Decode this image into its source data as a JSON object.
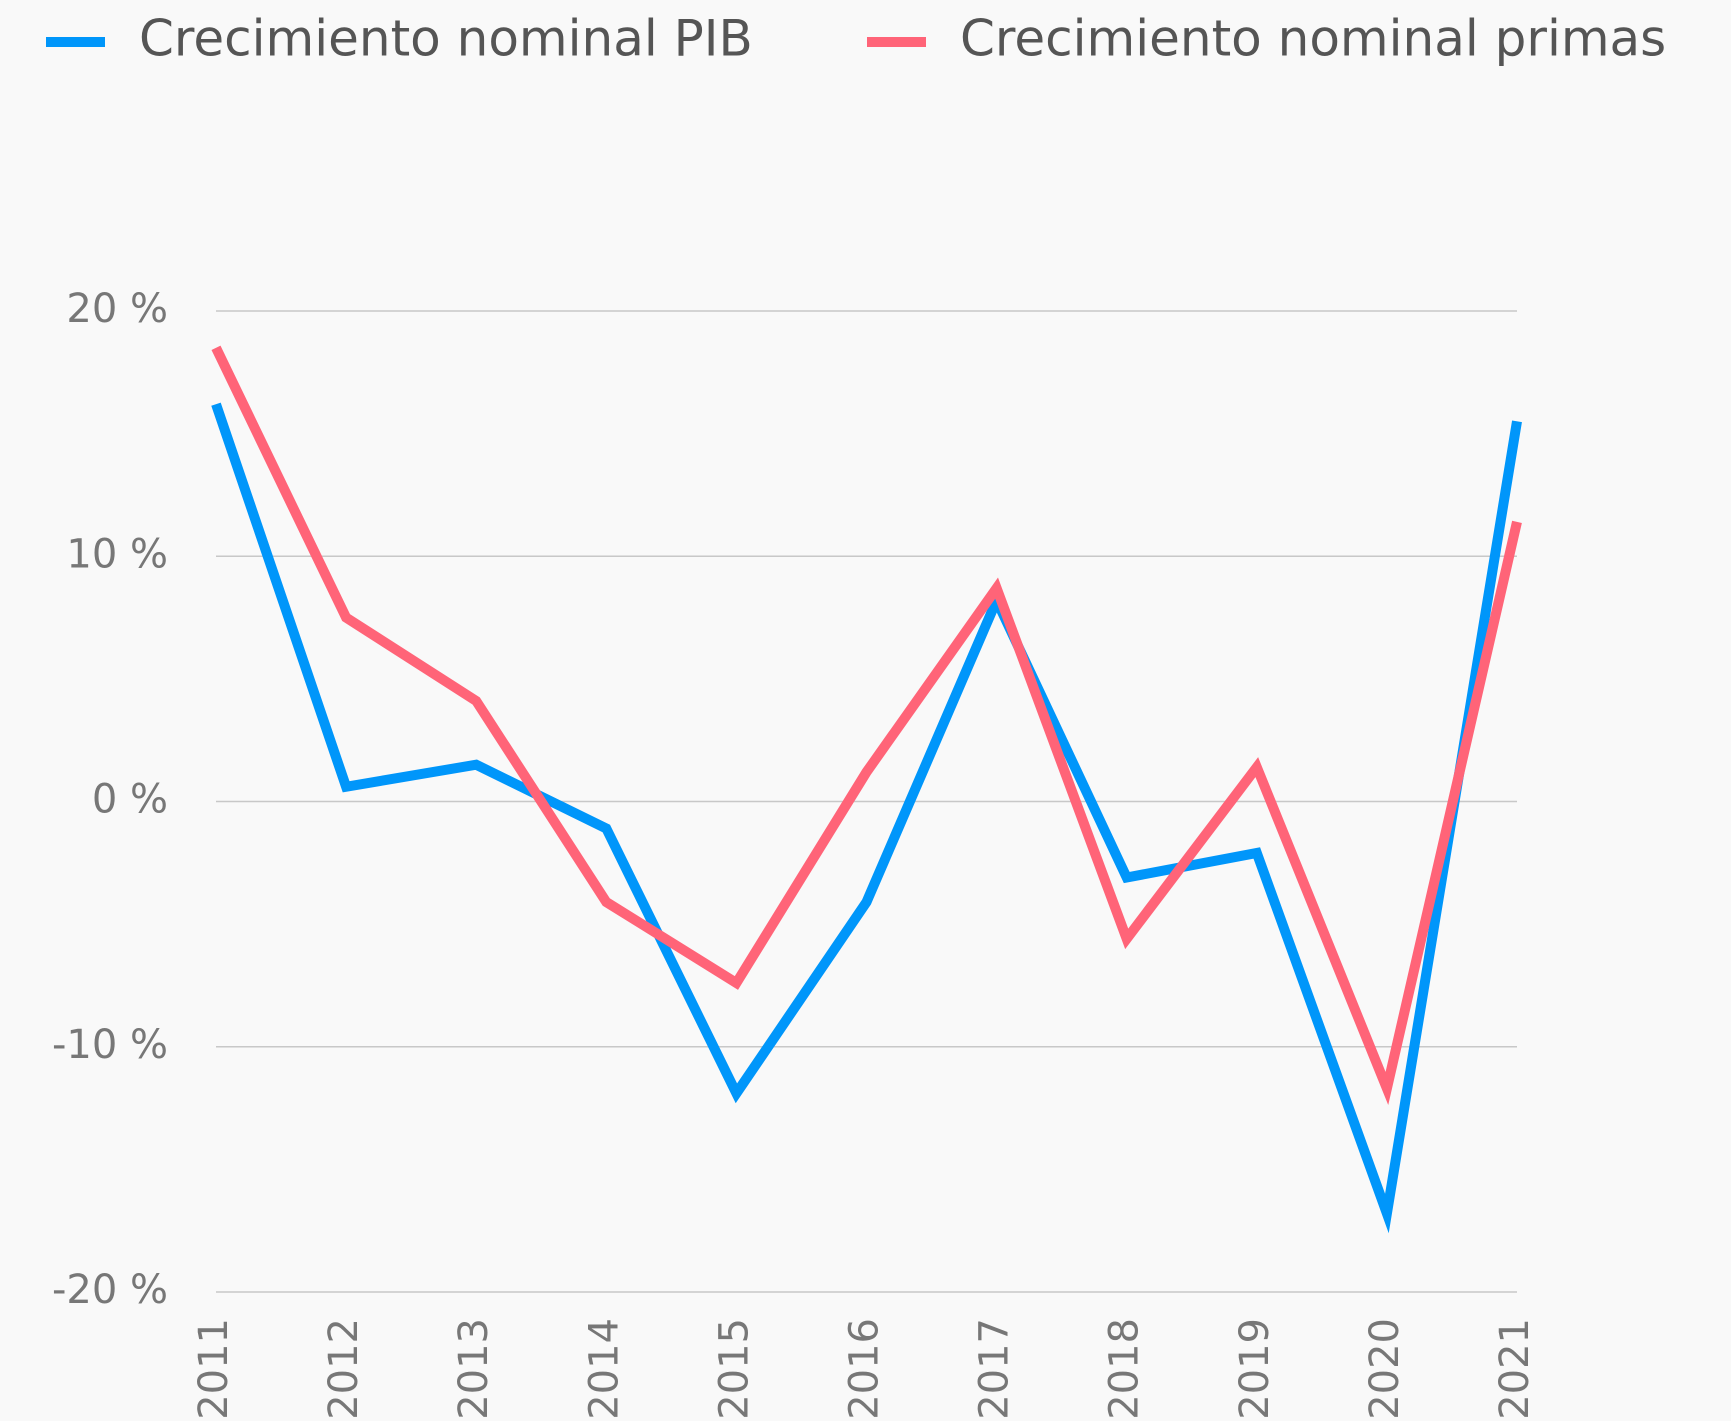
{
  "chart_data": {
    "type": "line",
    "categories": [
      "2011",
      "2012",
      "2013",
      "2014",
      "2015",
      "2016",
      "2017",
      "2018",
      "2019",
      "2020",
      "2021"
    ],
    "series": [
      {
        "name": "Crecimiento nominal PIB",
        "color": "#0096fa",
        "values": [
          16.2,
          0.6,
          1.5,
          -1.1,
          -11.9,
          -4.1,
          8.2,
          -3.1,
          -2.1,
          -16.8,
          15.5
        ]
      },
      {
        "name": "Crecimiento nominal primas",
        "color": "#ff6478",
        "values": [
          18.5,
          7.5,
          4.1,
          -4.1,
          -7.4,
          1.2,
          8.7,
          -5.6,
          1.4,
          -11.7,
          11.4
        ]
      }
    ],
    "ylim": [
      -20,
      20
    ],
    "yticks": [
      {
        "value": -20,
        "label": "-20 %"
      },
      {
        "value": -10,
        "label": "-10 %"
      },
      {
        "value": 0,
        "label": "0 %"
      },
      {
        "value": 10,
        "label": "10 %"
      },
      {
        "value": 20,
        "label": "20 %"
      }
    ],
    "grid": true,
    "legend": "top"
  }
}
